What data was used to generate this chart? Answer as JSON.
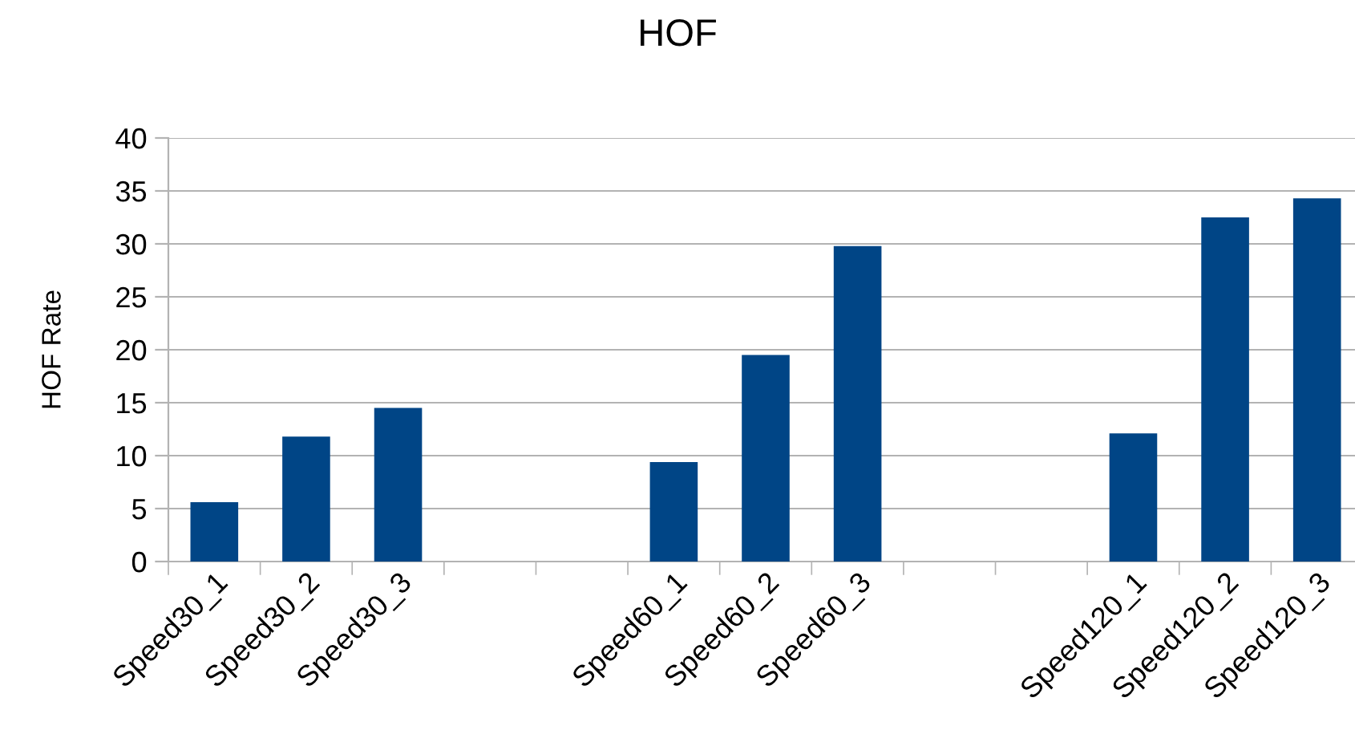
{
  "chart_data": {
    "type": "bar",
    "title": "HOF",
    "ylabel": "HOF Rate",
    "categories": [
      "Speed30_1",
      "Speed30_2",
      "Speed30_3",
      null,
      null,
      "Speed60_1",
      "Speed60_2",
      "Speed60_3",
      null,
      null,
      "Speed120_1",
      "Speed120_2",
      "Speed120_3"
    ],
    "values": [
      5.6,
      11.8,
      14.5,
      null,
      null,
      9.4,
      19.5,
      29.8,
      null,
      null,
      12.1,
      32.5,
      34.3
    ],
    "color": "#004586",
    "ylim": [
      0,
      40
    ],
    "yticks": [
      0,
      5,
      10,
      15,
      20,
      25,
      30,
      35,
      40
    ],
    "grid": "y",
    "legend": false
  }
}
